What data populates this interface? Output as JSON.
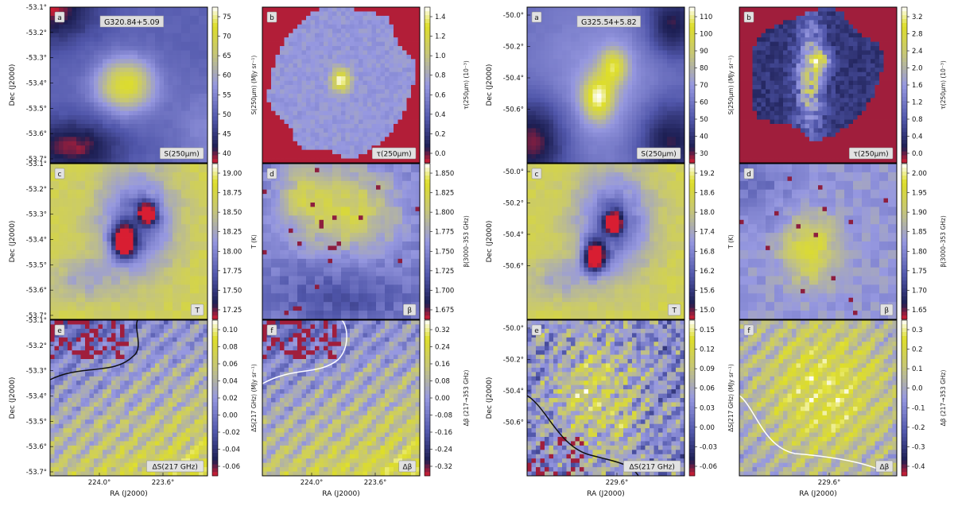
{
  "figure": {
    "blocks": [
      {
        "id": "left",
        "source": "G320.84+5.09",
        "dec_ticks": [
          "-53.1°",
          "-53.2°",
          "-53.3°",
          "-53.4°",
          "-53.5°",
          "-53.6°",
          "-53.7°"
        ],
        "ra_ticks": [
          "224.0°",
          "223.6°"
        ],
        "ylabel": "Dec (J2000)",
        "xlabel": "RA (J2000)",
        "panels": [
          {
            "letter": "a",
            "label": "S(250μm)",
            "kind": "flux_blob",
            "blob": [
              0.48,
              0.5
            ],
            "cbar_ticks": [
              "40",
              "45",
              "50",
              "55",
              "60",
              "65",
              "70",
              "75"
            ],
            "cbar_label": "S(250μm) (MJy sr⁻¹)"
          },
          {
            "letter": "b",
            "label": "τ(250μm)",
            "kind": "tau",
            "cbar_ticks": [
              "0.0",
              "0.2",
              "0.4",
              "0.6",
              "0.8",
              "1.0",
              "1.2",
              "1.4"
            ],
            "cbar_label": "τ(250μm) (10⁻³)"
          },
          {
            "letter": "c",
            "label": "T",
            "kind": "temp",
            "cores": [
              [
                0.47,
                0.5
              ],
              [
                0.62,
                0.32
              ]
            ],
            "cbar_ticks": [
              "17.25",
              "17.50",
              "17.75",
              "18.00",
              "18.25",
              "18.50",
              "18.75",
              "19.00"
            ],
            "cbar_label": "T (K)"
          },
          {
            "letter": "d",
            "label": "β",
            "kind": "beta",
            "cbar_ticks": [
              "1.675",
              "1.700",
              "1.725",
              "1.750",
              "1.775",
              "1.800",
              "1.825",
              "1.850"
            ],
            "cbar_label": "β(3000–353 GHz)"
          },
          {
            "letter": "e",
            "label": "ΔS(217 GHz)",
            "kind": "dS",
            "contour": "black",
            "cbar_ticks": [
              "-0.06",
              "-0.04",
              "-0.02",
              "0.00",
              "0.02",
              "0.04",
              "0.06",
              "0.08",
              "0.10"
            ],
            "cbar_label": "ΔS(217 GHz) (MJy sr⁻¹)"
          },
          {
            "letter": "f",
            "label": "Δβ",
            "kind": "dB",
            "contour": "white",
            "cbar_ticks": [
              "-0.32",
              "-0.24",
              "-0.16",
              "-0.08",
              "0.00",
              "0.08",
              "0.16",
              "0.24",
              "0.32"
            ],
            "cbar_label": "Δβ (217→353 GHz)"
          }
        ]
      },
      {
        "id": "right",
        "source": "G325.54+5.82",
        "dec_ticks": [
          "-50.0°",
          "-50.2°",
          "-50.4°",
          "-50.6°"
        ],
        "ra_ticks": [
          "229.6°"
        ],
        "ylabel": "Dec (J2000)",
        "xlabel": "RA (J2000)",
        "panels": [
          {
            "letter": "a",
            "label": "S(250μm)",
            "kind": "flux_elong",
            "cbar_ticks": [
              "30",
              "40",
              "50",
              "60",
              "70",
              "80",
              "90",
              "100",
              "110"
            ],
            "cbar_label": "S(250μm) (MJy sr⁻¹)"
          },
          {
            "letter": "b",
            "label": "τ(250μm)",
            "kind": "tau2",
            "cbar_ticks": [
              "0.0",
              "0.4",
              "0.8",
              "1.2",
              "1.6",
              "2.0",
              "2.4",
              "2.8",
              "3.2"
            ],
            "cbar_label": "τ(250μm) (10⁻³)"
          },
          {
            "letter": "c",
            "label": "T",
            "kind": "temp",
            "cores": [
              [
                0.43,
                0.6
              ],
              [
                0.55,
                0.38
              ]
            ],
            "cbar_ticks": [
              "15.0",
              "15.6",
              "16.2",
              "16.8",
              "17.4",
              "18.0",
              "18.6",
              "19.2"
            ],
            "cbar_label": "T (K)"
          },
          {
            "letter": "d",
            "label": "β",
            "kind": "beta2",
            "cbar_ticks": [
              "1.65",
              "1.70",
              "1.75",
              "1.80",
              "1.85",
              "1.90",
              "1.95",
              "2.00"
            ],
            "cbar_label": "β(3000–353 GHz)"
          },
          {
            "letter": "e",
            "label": "ΔS(217 GHz)",
            "kind": "dS2",
            "contour": "black",
            "cbar_ticks": [
              "-0.06",
              "-0.03",
              "0.00",
              "0.03",
              "0.06",
              "0.09",
              "0.12",
              "0.15"
            ],
            "cbar_label": "ΔS(217 GHz) (MJy sr⁻¹)"
          },
          {
            "letter": "f",
            "label": "Δβ",
            "kind": "dB2",
            "contour": "white",
            "cbar_ticks": [
              "-0.4",
              "-0.3",
              "-0.2",
              "-0.1",
              "0.0",
              "0.1",
              "0.2",
              "0.3"
            ],
            "cbar_label": "Δβ (217→353 GHz)"
          }
        ]
      }
    ]
  },
  "chart_data": {
    "type": "heatmap",
    "fields": [
      {
        "source": "G320.84+5.09",
        "dec_range": [
          -53.75,
          -53.1
        ],
        "ra_ticks": [
          224.0,
          223.6
        ],
        "maps": [
          "S(250μm)",
          "τ(250μm)",
          "T",
          "β",
          "ΔS(217 GHz)",
          "Δβ"
        ],
        "S250_range": [
          40,
          78
        ],
        "tau250_range_e3": [
          -0.1,
          1.45
        ],
        "T_range": [
          17.25,
          19.1
        ],
        "beta_range": [
          1.66,
          1.86
        ],
        "dS217_range": [
          -0.07,
          0.105
        ],
        "dbeta_range": [
          -0.33,
          0.33
        ]
      },
      {
        "source": "G325.54+5.82",
        "dec_range": [
          -50.72,
          -49.98
        ],
        "ra_ticks": [
          229.6
        ],
        "maps": [
          "S(250μm)",
          "τ(250μm)",
          "T",
          "β",
          "ΔS(217 GHz)",
          "Δβ"
        ],
        "S250_range": [
          25,
          118
        ],
        "tau250_range_e3": [
          -0.15,
          3.3
        ],
        "T_range": [
          14.7,
          19.4
        ],
        "beta_range": [
          1.64,
          2.03
        ],
        "dS217_range": [
          -0.075,
          0.175
        ],
        "dbeta_range": [
          -0.42,
          0.34
        ]
      }
    ]
  }
}
